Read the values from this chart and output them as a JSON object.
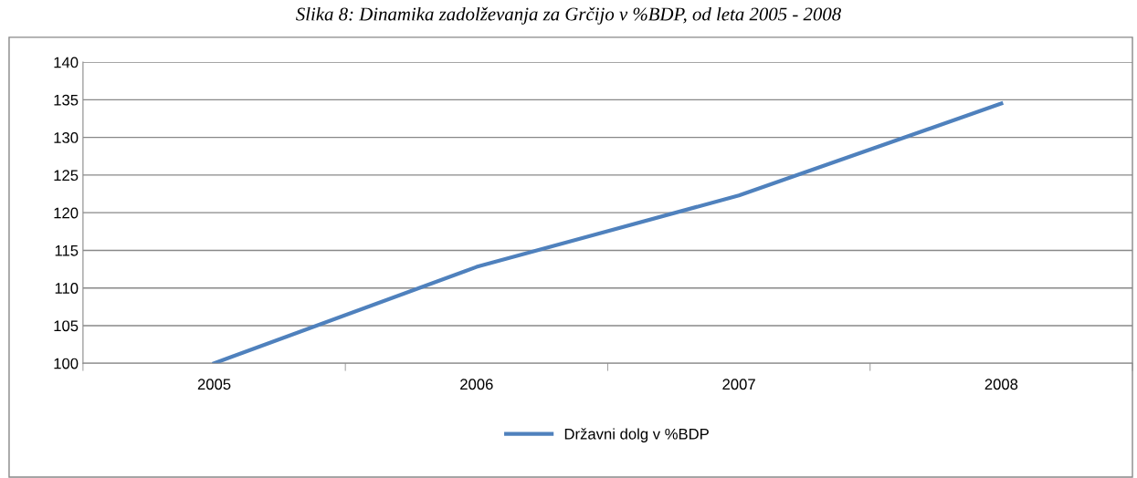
{
  "chart_data": {
    "type": "line",
    "title": "Slika 8: Dinamika zadolževanja za Grčijo v %BDP, od leta 2005 - 2008",
    "categories": [
      "2005",
      "2006",
      "2007",
      "2008"
    ],
    "series": [
      {
        "name": "Državni dolg v %BDP",
        "color": "#4f81bd",
        "values": [
          100,
          112.8,
          122.3,
          134.5
        ]
      }
    ],
    "ylim": [
      100,
      140
    ],
    "yticks": [
      100,
      105,
      110,
      115,
      120,
      125,
      130,
      135,
      140
    ],
    "grid": "y",
    "legend": "bottom",
    "marker": "none",
    "line_style": "solid"
  }
}
